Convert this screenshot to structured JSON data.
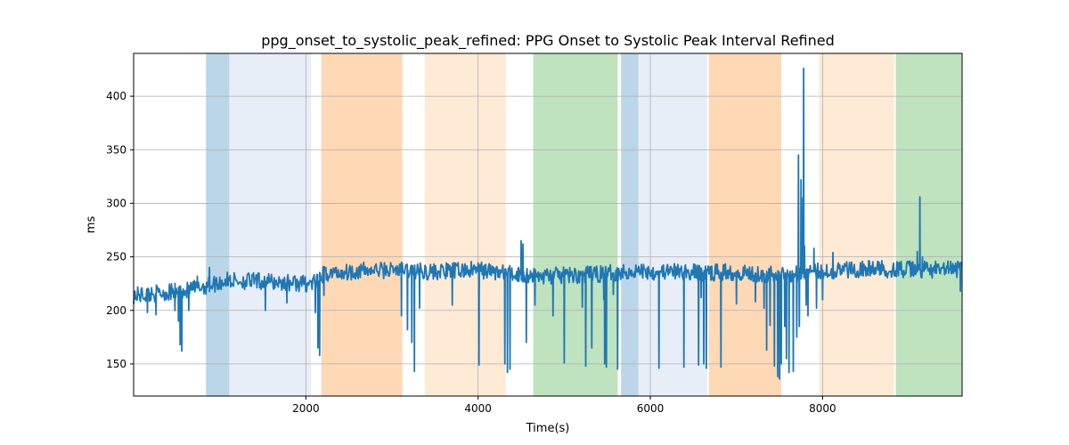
{
  "chart_data": {
    "type": "line",
    "title": "ppg_onset_to_systolic_peak_refined: PPG Onset to Systolic Peak Interval Refined",
    "xlabel": "Time(s)",
    "ylabel": "ms",
    "xlim": [
      0,
      9620
    ],
    "ylim": [
      120,
      440
    ],
    "x_ticks": [
      2000,
      4000,
      6000,
      8000
    ],
    "y_ticks": [
      150,
      200,
      250,
      300,
      350,
      400
    ],
    "grid": true,
    "line_color": "#1f77b4",
    "bands": [
      {
        "x0": 840,
        "x1": 1110,
        "color": "#1f77b4",
        "opacity": 0.3
      },
      {
        "x0": 1110,
        "x1": 2060,
        "color": "#aec7e8",
        "opacity": 0.3
      },
      {
        "x0": 2180,
        "x1": 3120,
        "color": "#ff7f0e",
        "opacity": 0.3
      },
      {
        "x0": 3380,
        "x1": 4320,
        "color": "#ffbb78",
        "opacity": 0.3
      },
      {
        "x0": 4640,
        "x1": 5620,
        "color": "#2ca02c",
        "opacity": 0.3
      },
      {
        "x0": 5660,
        "x1": 5860,
        "color": "#1f77b4",
        "opacity": 0.3
      },
      {
        "x0": 5860,
        "x1": 6660,
        "color": "#aec7e8",
        "opacity": 0.3
      },
      {
        "x0": 6680,
        "x1": 7520,
        "color": "#ff7f0e",
        "opacity": 0.3
      },
      {
        "x0": 7960,
        "x1": 8830,
        "color": "#ffbb78",
        "opacity": 0.3
      },
      {
        "x0": 8850,
        "x1": 9620,
        "color": "#2ca02c",
        "opacity": 0.3
      }
    ],
    "series": [
      {
        "baseline": [
          [
            0,
            214
          ],
          [
            300,
            216
          ],
          [
            600,
            218
          ],
          [
            840,
            223
          ],
          [
            1100,
            228
          ],
          [
            1500,
            227
          ],
          [
            2000,
            225
          ],
          [
            2150,
            226
          ],
          [
            2200,
            234
          ],
          [
            2600,
            237
          ],
          [
            3100,
            238
          ],
          [
            3500,
            236
          ],
          [
            4000,
            238
          ],
          [
            4400,
            234
          ],
          [
            4700,
            232
          ],
          [
            5200,
            233
          ],
          [
            5600,
            235
          ],
          [
            5800,
            237
          ],
          [
            6200,
            236
          ],
          [
            6660,
            235
          ],
          [
            7000,
            236
          ],
          [
            7500,
            233
          ],
          [
            7800,
            235
          ],
          [
            8000,
            237
          ],
          [
            8500,
            239
          ],
          [
            9000,
            238
          ],
          [
            9620,
            238
          ]
        ],
        "noise_amplitude": 8,
        "spikes": [
          [
            160,
            198
          ],
          [
            260,
            196
          ],
          [
            380,
            210
          ],
          [
            480,
            200
          ],
          [
            520,
            190
          ],
          [
            540,
            168
          ],
          [
            560,
            162
          ],
          [
            640,
            200
          ],
          [
            740,
            232
          ],
          [
            880,
            240
          ],
          [
            1530,
            200
          ],
          [
            1780,
            207
          ],
          [
            2110,
            198
          ],
          [
            2140,
            165
          ],
          [
            2160,
            158
          ],
          [
            2210,
            214
          ],
          [
            3110,
            195
          ],
          [
            3180,
            182
          ],
          [
            3230,
            170
          ],
          [
            3260,
            143
          ],
          [
            3320,
            202
          ],
          [
            3700,
            205
          ],
          [
            4010,
            149
          ],
          [
            4310,
            150
          ],
          [
            4340,
            142
          ],
          [
            4370,
            145
          ],
          [
            4470,
            240
          ],
          [
            4500,
            265
          ],
          [
            4520,
            262
          ],
          [
            4560,
            170
          ],
          [
            4580,
            232
          ],
          [
            4660,
            205
          ],
          [
            4870,
            195
          ],
          [
            5000,
            151
          ],
          [
            5210,
            203
          ],
          [
            5250,
            148
          ],
          [
            5320,
            165
          ],
          [
            5460,
            210
          ],
          [
            5470,
            150
          ],
          [
            5490,
            147
          ],
          [
            5570,
            215
          ],
          [
            5620,
            145
          ],
          [
            5780,
            232
          ],
          [
            5960,
            232
          ],
          [
            6100,
            146
          ],
          [
            6390,
            147
          ],
          [
            6560,
            149
          ],
          [
            6590,
            212
          ],
          [
            6620,
            150
          ],
          [
            6650,
            146
          ],
          [
            6820,
            147
          ],
          [
            7000,
            206
          ],
          [
            7220,
            208
          ],
          [
            7320,
            202
          ],
          [
            7350,
            163
          ],
          [
            7390,
            186
          ],
          [
            7440,
            148
          ],
          [
            7480,
            138
          ],
          [
            7500,
            136
          ],
          [
            7520,
            150
          ],
          [
            7560,
            185
          ],
          [
            7580,
            155
          ],
          [
            7610,
            142
          ],
          [
            7660,
            143
          ],
          [
            7700,
            175
          ],
          [
            7720,
            345
          ],
          [
            7730,
            185
          ],
          [
            7750,
            322
          ],
          [
            7770,
            305
          ],
          [
            7780,
            426
          ],
          [
            7790,
            260
          ],
          [
            7810,
            205
          ],
          [
            7830,
            195
          ],
          [
            7900,
            258
          ],
          [
            7930,
            202
          ],
          [
            8000,
            210
          ],
          [
            8120,
            254
          ],
          [
            9100,
            255
          ],
          [
            9130,
            306
          ],
          [
            9160,
            250
          ],
          [
            9600,
            218
          ]
        ]
      }
    ]
  }
}
